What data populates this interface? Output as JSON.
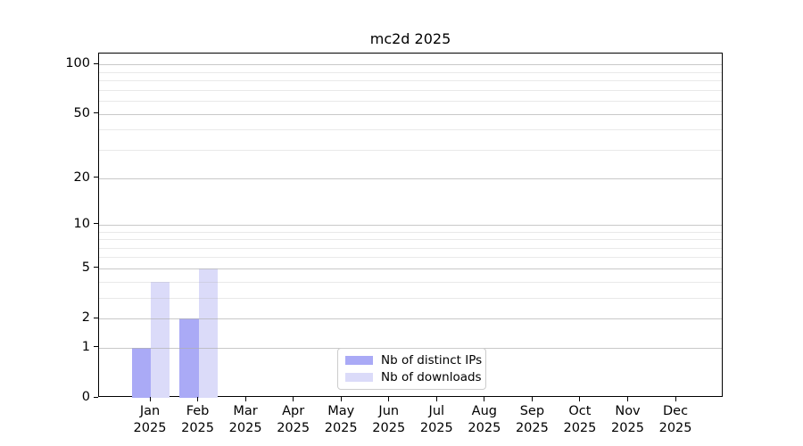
{
  "title": "mc2d 2025",
  "legend": {
    "items": [
      {
        "label": "Nb of distinct IPs",
        "series_key": "ips"
      },
      {
        "label": "Nb of downloads",
        "series_key": "downloads"
      }
    ]
  },
  "colors": {
    "ips": "#aaaaf6",
    "downloads": "#dbdbf9",
    "grid": "#b0b0b0",
    "axis": "#000000",
    "legend_border": "#cccccc"
  },
  "chart_data": {
    "type": "bar",
    "title": "mc2d 2025",
    "categories": [
      "Jan",
      "Feb",
      "Mar",
      "Apr",
      "May",
      "Jun",
      "Jul",
      "Aug",
      "Sep",
      "Oct",
      "Nov",
      "Dec"
    ],
    "x_year_label": "2025",
    "series": [
      {
        "name": "Nb of distinct IPs",
        "key": "ips",
        "values": [
          1,
          2,
          0,
          0,
          0,
          0,
          0,
          0,
          0,
          0,
          0,
          0
        ]
      },
      {
        "name": "Nb of downloads",
        "key": "downloads",
        "values": [
          4,
          5,
          0,
          0,
          0,
          0,
          0,
          0,
          0,
          0,
          0,
          0
        ]
      }
    ],
    "y_scale": "log1p",
    "y_major_ticks": [
      0,
      1,
      2,
      5,
      10,
      20,
      50,
      100
    ],
    "y_major_tick_labels": [
      "0",
      "1",
      "2",
      "5",
      "10",
      "20",
      "50",
      "100"
    ],
    "y_minor_ticks": [
      3,
      4,
      6,
      7,
      8,
      9,
      30,
      40,
      60,
      70,
      80,
      90
    ],
    "ylim": [
      0,
      116
    ],
    "grid": "on",
    "legend_position": "lower center"
  }
}
